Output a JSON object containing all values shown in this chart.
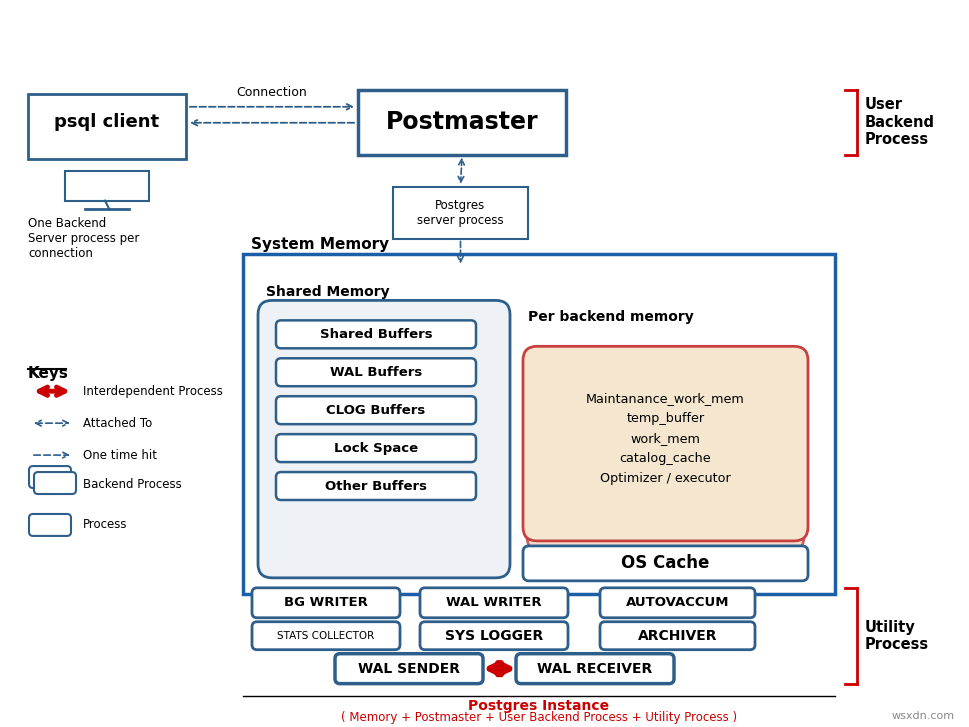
{
  "bg_color": "#ffffff",
  "title_text": "Postgres Instance",
  "title_sub": "( Memory + Postmaster + User Backend Process + Utility Process )",
  "psql_client_label": "psql client",
  "postmaster_label": "Postmaster",
  "postgres_server_label": "Postgres\nserver process",
  "connection_label": "Connection",
  "one_backend_label": "One Backend\nServer process per\nconnection",
  "system_memory_label": "System Memory",
  "shared_memory_label": "Shared Memory",
  "per_backend_label": "Per backend memory",
  "shared_buffers": "Shared Buffers",
  "wal_buffers": "WAL Buffers",
  "clog_buffers": "CLOG Buffers",
  "lock_space": "Lock Space",
  "other_buffers": "Other Buffers",
  "per_backend_items": "Maintanance_work_mem\ntemp_buffer\nwork_mem\ncatalog_cache\nOptimizer / executor",
  "os_cache": "OS Cache",
  "bg_writer": "BG WRITER",
  "wal_writer": "WAL WRITER",
  "autovaccum": "AUTOVACCUM",
  "stats_collector": "STATS COLLECTOR",
  "sys_logger": "SYS LOGGER",
  "archiver": "ARCHIVER",
  "wal_sender": "WAL SENDER",
  "wal_receiver": "WAL RECEIVER",
  "user_backend_process": "User\nBackend\nProcess",
  "utility_process": "Utility\nProcess",
  "keys_label": "Keys",
  "key1": "Interdependent Process",
  "key2": "Attached To",
  "key3": "One time hit",
  "key4": "Backend Process",
  "key5": "Process",
  "box_color": "#2e5f8a",
  "red_color": "#cc0000",
  "system_mem_box_color": "#1a5fa8",
  "shared_mem_box_color": "#2e5f8a",
  "per_backend_bg": "#f5e6d0",
  "per_backend_border": "#cc4444",
  "watermark": "wsxdn.com"
}
